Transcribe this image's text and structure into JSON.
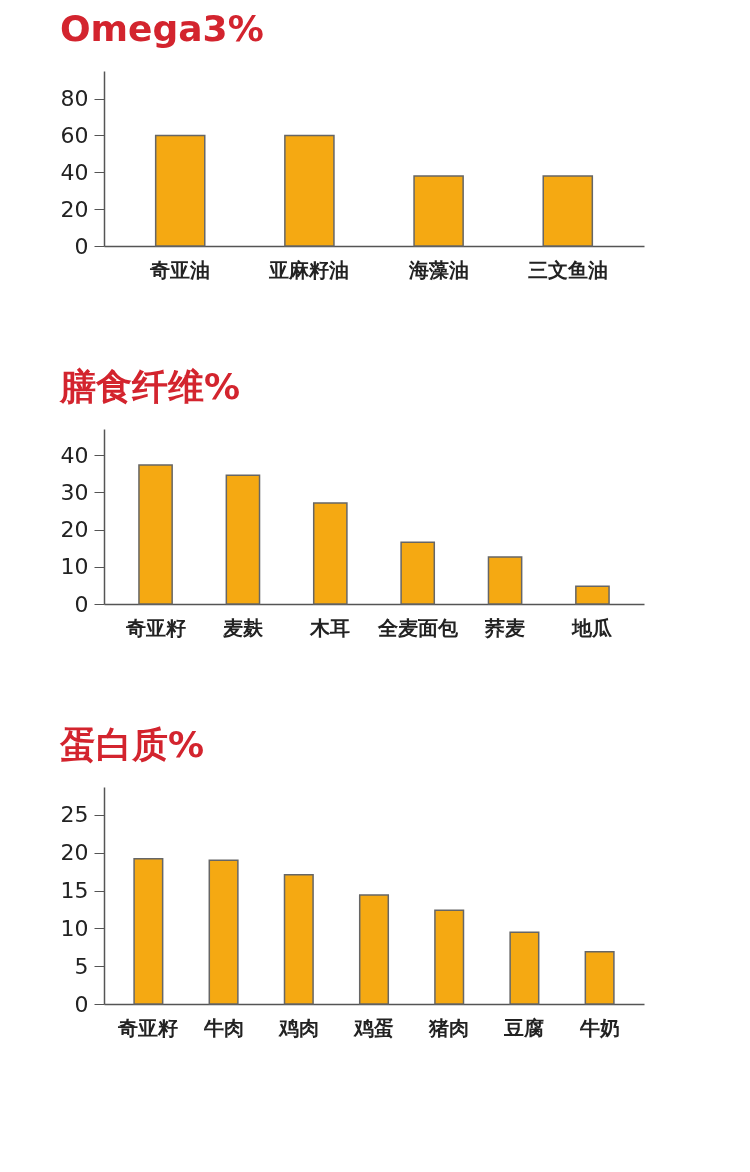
{
  "chart_data": [
    {
      "type": "bar",
      "title": "Omega3%",
      "categories": [
        "奇亚油",
        "亚麻籽油",
        "海藻油",
        "三文鱼油"
      ],
      "values": [
        60,
        60,
        38,
        38
      ],
      "color": "#f5a912",
      "ylim": [
        0,
        95
      ],
      "yticks": [
        0,
        20,
        40,
        60,
        80
      ]
    },
    {
      "type": "bar",
      "title": "膳食纤维%",
      "categories": [
        "奇亚籽",
        "麦麸",
        "木耳",
        "全麦面包",
        "荞麦",
        "地瓜"
      ],
      "values": [
        37.3,
        34.6,
        27.1,
        16.6,
        12.6,
        4.8
      ],
      "color": "#f5a912",
      "ylim": [
        0,
        47
      ],
      "yticks": [
        0,
        10,
        20,
        30,
        40
      ]
    },
    {
      "type": "bar",
      "title": "蛋白质%",
      "categories": [
        "奇亚籽",
        "牛肉",
        "鸡肉",
        "鸡蛋",
        "猪肉",
        "豆腐",
        "牛奶"
      ],
      "values": [
        19.2,
        19.0,
        17.1,
        14.4,
        12.4,
        9.5,
        6.9
      ],
      "color": "#f5a912",
      "ylim": [
        0,
        28.7
      ],
      "yticks": [
        0,
        5,
        10,
        15,
        20,
        25
      ]
    }
  ]
}
